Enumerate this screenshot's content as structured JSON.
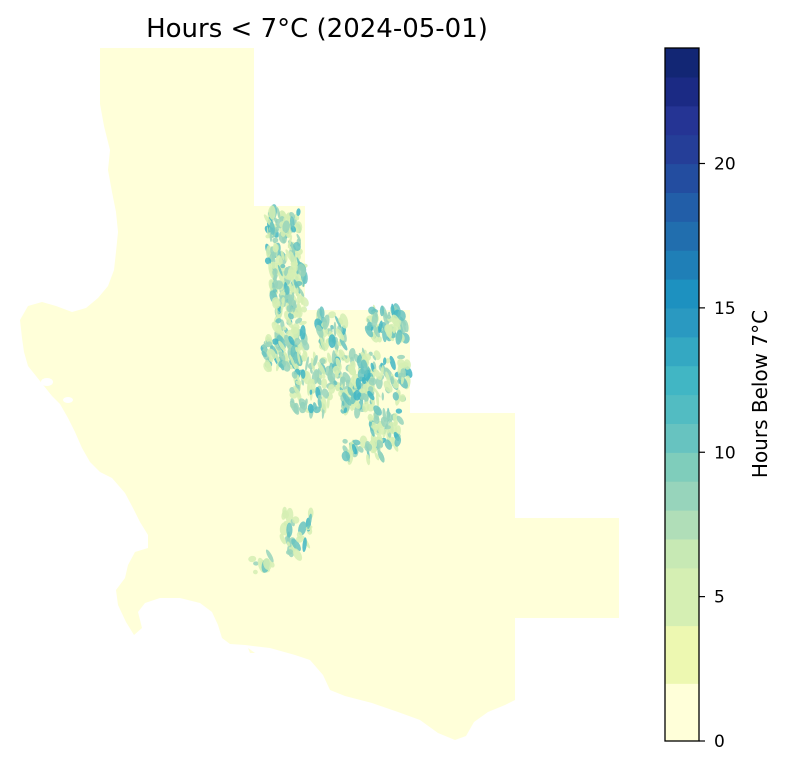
{
  "chart_data": {
    "type": "heatmap",
    "title": "Hours < 7°C (2024-05-01)",
    "colorbar": {
      "label": "Hours Below 7°C",
      "range": [
        0,
        24
      ],
      "ticks": [
        0,
        5,
        10,
        15,
        20
      ],
      "tick_labels": [
        "0",
        "5",
        "10",
        "15",
        "20"
      ],
      "levels": [
        0,
        2,
        4,
        6,
        7,
        8,
        9,
        10,
        11,
        12,
        13,
        14,
        15,
        16,
        17,
        18,
        19,
        20,
        21,
        22,
        23,
        24
      ],
      "colormap": "YlGnBu",
      "colors": [
        "#ffffd9",
        "#edf8b1",
        "#d5efb3",
        "#c7e9b4",
        "#b0deb8",
        "#97d4bb",
        "#7fcdbb",
        "#67c3c0",
        "#52bcc2",
        "#41b6c4",
        "#34a8c2",
        "#2a99c1",
        "#1d91c0",
        "#1f7fb7",
        "#216eae",
        "#225ea8",
        "#234da0",
        "#253e98",
        "#253494",
        "#1b2a84",
        "#122674"
      ]
    },
    "legend": "colorbar at right",
    "axes_visible": false,
    "map_base_color": "#ffffd9",
    "cold_zone_colors": [
      "#d5efb3",
      "#97d4bb",
      "#67c3c0",
      "#41b6c4"
    ]
  }
}
